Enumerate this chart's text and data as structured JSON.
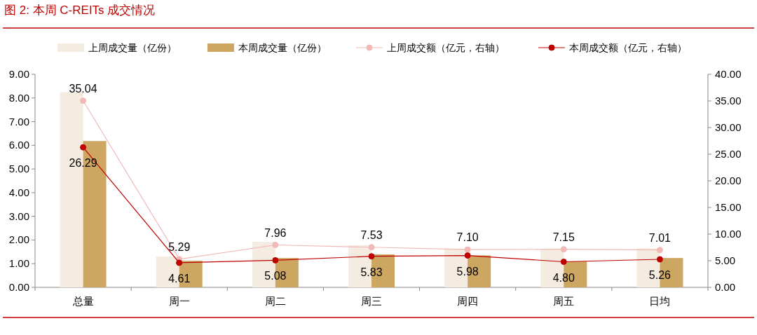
{
  "chart_data": {
    "type": "bar",
    "title": "图 2:  本周 C-REITs 成交情况",
    "categories": [
      "总量",
      "周一",
      "周二",
      "周三",
      "周四",
      "周五",
      "日均"
    ],
    "series": [
      {
        "name": "上周成交量（亿份）",
        "color": "#f4ece0",
        "values": [
          8.25,
          1.3,
          1.92,
          1.78,
          1.64,
          1.61,
          1.64
        ]
      },
      {
        "name": "本周成交量（亿份）",
        "color": "#cda662",
        "values": [
          6.18,
          1.12,
          1.24,
          1.39,
          1.35,
          1.09,
          1.24
        ]
      },
      {
        "name": "上周成交额（亿元，右轴）",
        "type": "line",
        "axis": "y2",
        "color": "#f2b8b8",
        "marker": "circle",
        "values": [
          35.04,
          5.29,
          7.96,
          7.53,
          7.1,
          7.15,
          7.01
        ],
        "value_labels": [
          "35.04",
          "5.29",
          "7.96",
          "7.53",
          "7.10",
          "7.15",
          "7.01"
        ]
      },
      {
        "name": "本周成交额（亿元，右轴）",
        "type": "line",
        "axis": "y2",
        "color": "#c00000",
        "marker": "circle",
        "values": [
          26.29,
          4.61,
          5.08,
          5.83,
          5.98,
          4.8,
          5.26
        ],
        "value_labels": [
          "26.29",
          "4.61",
          "5.08",
          "5.83",
          "5.98",
          "4.80",
          "5.26"
        ]
      }
    ],
    "ylim": [
      0,
      9
    ],
    "yticks": [
      {
        "value": 0,
        "label": "0.00"
      },
      {
        "value": 1,
        "label": "1.00"
      },
      {
        "value": 2,
        "label": "2.00"
      },
      {
        "value": 3,
        "label": "3.00"
      },
      {
        "value": 4,
        "label": "4.00"
      },
      {
        "value": 5,
        "label": "5.00"
      },
      {
        "value": 6,
        "label": "6.00"
      },
      {
        "value": 7,
        "label": "7.00"
      },
      {
        "value": 8,
        "label": "8.00"
      },
      {
        "value": 9,
        "label": "9.00"
      }
    ],
    "y2lim": [
      0,
      40
    ],
    "y2ticks": [
      {
        "value": 0,
        "label": "0.00"
      },
      {
        "value": 5,
        "label": "5.00"
      },
      {
        "value": 10,
        "label": "10.00"
      },
      {
        "value": 15,
        "label": "15.00"
      },
      {
        "value": 20,
        "label": "20.00"
      },
      {
        "value": 25,
        "label": "25.00"
      },
      {
        "value": 30,
        "label": "30.00"
      },
      {
        "value": 35,
        "label": "35.00"
      },
      {
        "value": 40,
        "label": "40.00"
      }
    ],
    "legend": "top",
    "grid": false
  }
}
